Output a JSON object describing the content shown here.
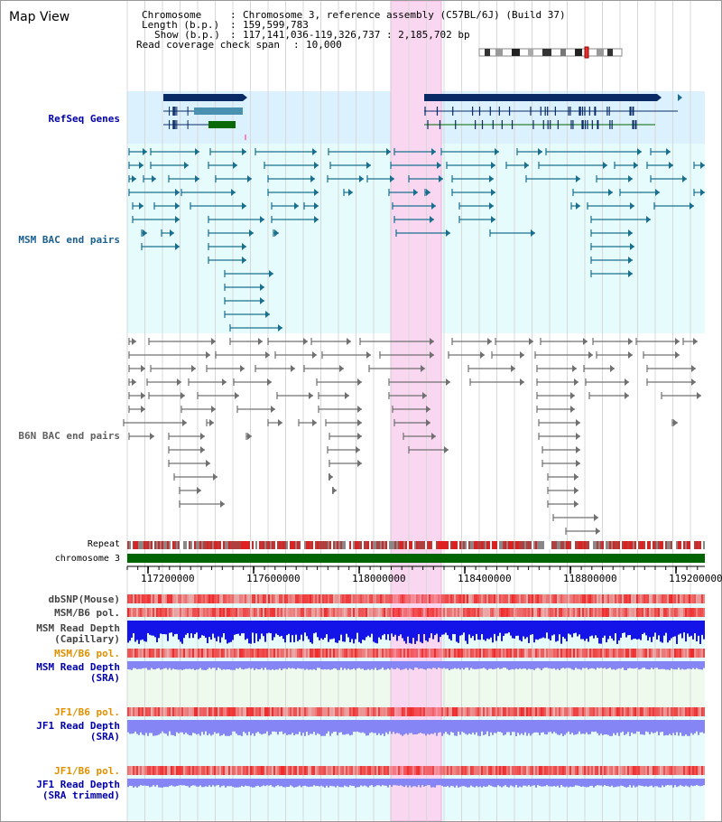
{
  "title": "Map View",
  "info": {
    "chromosome_label": "Chromosome",
    "chromosome_value": "Chromosome 3, reference assembly (C57BL/6J) (Build 37)",
    "length_label": "Length (b.p.)",
    "length_value": "159,599,783",
    "show_label": "Show (b.p.)",
    "show_value": "117,141,036-119,326,737 : 2,185,702 bp",
    "coverage_label": "Read coverage check span",
    "coverage_value": "10,000"
  },
  "tracks": {
    "refseq": "RefSeq Genes",
    "msm_bac": "MSM BAC end pairs",
    "b6n_bac": "B6N BAC end pairs",
    "repeat": "Repeat",
    "chromosome": "chromosome 3",
    "dbsnp": "dbSNP(Mouse)",
    "msm_b6_pol_1": "MSM/B6 pol.",
    "msm_depth_cap_1": "MSM Read Depth",
    "msm_depth_cap_2": "(Capillary)",
    "msm_b6_pol_2": "MSM/B6 pol.",
    "msm_depth_sra_1": "MSM Read Depth",
    "msm_depth_sra_2": "(SRA)",
    "jf1_b6_pol_1": "JF1/B6 pol.",
    "jf1_depth_sra_1": "JF1 Read Depth",
    "jf1_depth_sra_2": "(SRA)",
    "jf1_b6_pol_2": "JF1/B6 pol.",
    "jf1_depth_trim_1": "JF1 Read Depth",
    "jf1_depth_trim_2": "(SRA trimmed)"
  },
  "axis_ticks": [
    "117200000",
    "117600000",
    "118000000",
    "118400000",
    "118800000",
    "119200000"
  ],
  "colors": {
    "refseq_bg": "#dbf1fd",
    "track_bg": "#e6fbfb",
    "highlight": "#f9d7f1",
    "msm_line": "#1a6f8f",
    "b6n_line": "#707070",
    "chromosome_bar": "#006400",
    "snp_red": "#f23a3a",
    "depth_blue": "#1414e8",
    "depth_light": "#8585f5",
    "label_blue": "#0000aa",
    "label_orange": "#e09000",
    "label_teal": "#1a5f8f"
  }
}
